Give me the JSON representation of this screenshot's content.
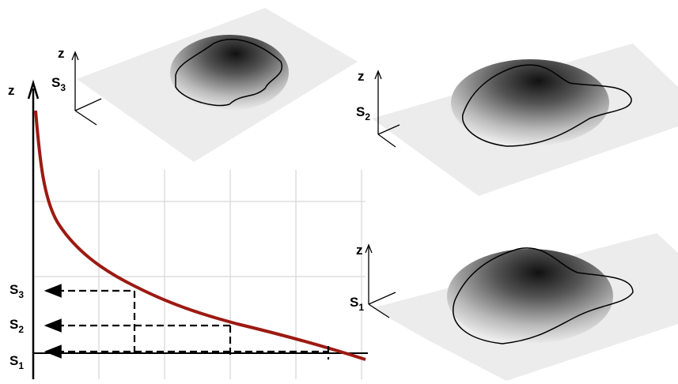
{
  "plot": {
    "axis_label": "z",
    "levels": [
      {
        "letter": "S",
        "sub": "3"
      },
      {
        "letter": "S",
        "sub": "2"
      },
      {
        "letter": "S",
        "sub": "1"
      }
    ]
  },
  "surfaces": [
    {
      "axis_label": "z",
      "letter": "S",
      "sub": "3"
    },
    {
      "axis_label": "z",
      "letter": "S",
      "sub": "2"
    },
    {
      "axis_label": "z",
      "letter": "S",
      "sub": "1"
    }
  ]
}
